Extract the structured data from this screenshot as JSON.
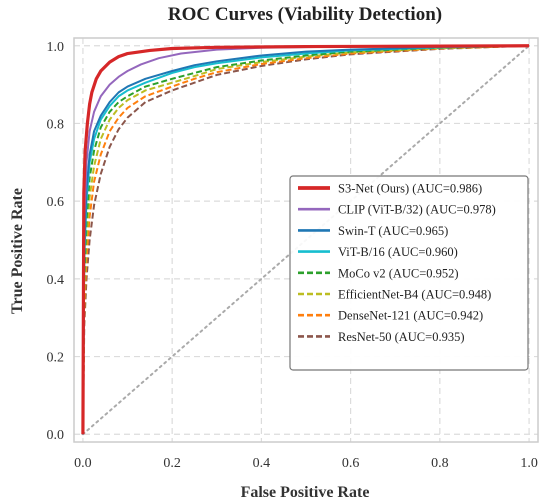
{
  "chart_data": {
    "type": "line",
    "title": "ROC Curves (Viability Detection)",
    "xlabel": "False Positive Rate",
    "ylabel": "True Positive Rate",
    "xlim": [
      -0.02,
      1.02
    ],
    "ylim": [
      -0.02,
      1.02
    ],
    "xticks": [
      "0.0",
      "0.2",
      "0.4",
      "0.6",
      "0.8",
      "1.0"
    ],
    "yticks": [
      "0.0",
      "0.2",
      "0.4",
      "0.6",
      "0.8",
      "1.0"
    ],
    "grid": true,
    "legend_position": "center-right",
    "diagonal": {
      "style": "dotted",
      "color": "#aaaaaa",
      "points": [
        [
          0,
          0
        ],
        [
          1,
          1
        ]
      ]
    },
    "series": [
      {
        "name": "S3-Net (Ours) (AUC=0.986)",
        "color": "#d62728",
        "style": "solid",
        "width": 3.2,
        "points": [
          [
            0,
            0
          ],
          [
            0.002,
            0.62
          ],
          [
            0.005,
            0.73
          ],
          [
            0.01,
            0.8
          ],
          [
            0.015,
            0.85
          ],
          [
            0.02,
            0.88
          ],
          [
            0.03,
            0.915
          ],
          [
            0.04,
            0.935
          ],
          [
            0.06,
            0.958
          ],
          [
            0.08,
            0.972
          ],
          [
            0.1,
            0.98
          ],
          [
            0.15,
            0.988
          ],
          [
            0.2,
            0.993
          ],
          [
            0.3,
            0.996
          ],
          [
            0.5,
            0.998
          ],
          [
            0.8,
            0.999
          ],
          [
            1,
            1
          ]
        ]
      },
      {
        "name": "CLIP (ViT-B/32) (AUC=0.978)",
        "color": "#9467bd",
        "style": "solid",
        "width": 2,
        "points": [
          [
            0,
            0
          ],
          [
            0.003,
            0.55
          ],
          [
            0.008,
            0.7
          ],
          [
            0.015,
            0.78
          ],
          [
            0.025,
            0.83
          ],
          [
            0.04,
            0.87
          ],
          [
            0.06,
            0.9
          ],
          [
            0.08,
            0.92
          ],
          [
            0.1,
            0.935
          ],
          [
            0.13,
            0.952
          ],
          [
            0.17,
            0.968
          ],
          [
            0.22,
            0.98
          ],
          [
            0.3,
            0.99
          ],
          [
            0.4,
            0.995
          ],
          [
            0.6,
            0.998
          ],
          [
            1,
            1
          ]
        ]
      },
      {
        "name": "Swin-T (AUC=0.965)",
        "color": "#1f77b4",
        "style": "solid",
        "width": 2,
        "points": [
          [
            0,
            0
          ],
          [
            0.003,
            0.48
          ],
          [
            0.008,
            0.63
          ],
          [
            0.015,
            0.72
          ],
          [
            0.025,
            0.78
          ],
          [
            0.04,
            0.82
          ],
          [
            0.06,
            0.855
          ],
          [
            0.08,
            0.88
          ],
          [
            0.1,
            0.895
          ],
          [
            0.14,
            0.915
          ],
          [
            0.2,
            0.935
          ],
          [
            0.25,
            0.95
          ],
          [
            0.3,
            0.96
          ],
          [
            0.4,
            0.975
          ],
          [
            0.5,
            0.985
          ],
          [
            0.6,
            0.99
          ],
          [
            0.8,
            0.997
          ],
          [
            1,
            1
          ]
        ]
      },
      {
        "name": "ViT-B/16 (AUC=0.960)",
        "color": "#17becf",
        "style": "solid",
        "width": 2,
        "points": [
          [
            0,
            0
          ],
          [
            0.003,
            0.45
          ],
          [
            0.008,
            0.6
          ],
          [
            0.015,
            0.7
          ],
          [
            0.025,
            0.76
          ],
          [
            0.04,
            0.81
          ],
          [
            0.06,
            0.845
          ],
          [
            0.08,
            0.87
          ],
          [
            0.1,
            0.885
          ],
          [
            0.14,
            0.905
          ],
          [
            0.2,
            0.93
          ],
          [
            0.25,
            0.945
          ],
          [
            0.3,
            0.955
          ],
          [
            0.4,
            0.97
          ],
          [
            0.5,
            0.98
          ],
          [
            0.6,
            0.988
          ],
          [
            0.8,
            0.996
          ],
          [
            1,
            1
          ]
        ]
      },
      {
        "name": "MoCo v2 (AUC=0.952)",
        "color": "#2ca02c",
        "style": "dashed",
        "width": 2,
        "points": [
          [
            0,
            0
          ],
          [
            0.003,
            0.4
          ],
          [
            0.008,
            0.55
          ],
          [
            0.015,
            0.66
          ],
          [
            0.025,
            0.73
          ],
          [
            0.04,
            0.79
          ],
          [
            0.06,
            0.83
          ],
          [
            0.08,
            0.855
          ],
          [
            0.1,
            0.87
          ],
          [
            0.14,
            0.895
          ],
          [
            0.2,
            0.915
          ],
          [
            0.25,
            0.93
          ],
          [
            0.3,
            0.945
          ],
          [
            0.4,
            0.962
          ],
          [
            0.5,
            0.975
          ],
          [
            0.6,
            0.985
          ],
          [
            0.8,
            0.995
          ],
          [
            1,
            1
          ]
        ]
      },
      {
        "name": "EfficientNet-B4 (AUC=0.948)",
        "color": "#bcbd22",
        "style": "dashed",
        "width": 2,
        "points": [
          [
            0,
            0
          ],
          [
            0.003,
            0.36
          ],
          [
            0.008,
            0.5
          ],
          [
            0.015,
            0.61
          ],
          [
            0.025,
            0.69
          ],
          [
            0.04,
            0.76
          ],
          [
            0.06,
            0.81
          ],
          [
            0.08,
            0.84
          ],
          [
            0.1,
            0.86
          ],
          [
            0.14,
            0.885
          ],
          [
            0.2,
            0.905
          ],
          [
            0.25,
            0.922
          ],
          [
            0.3,
            0.94
          ],
          [
            0.4,
            0.958
          ],
          [
            0.5,
            0.972
          ],
          [
            0.6,
            0.983
          ],
          [
            0.8,
            0.994
          ],
          [
            1,
            1
          ]
        ]
      },
      {
        "name": "DenseNet-121 (AUC=0.942)",
        "color": "#ff7f0e",
        "style": "dashed",
        "width": 2,
        "points": [
          [
            0,
            0
          ],
          [
            0.003,
            0.32
          ],
          [
            0.008,
            0.45
          ],
          [
            0.015,
            0.56
          ],
          [
            0.025,
            0.65
          ],
          [
            0.04,
            0.72
          ],
          [
            0.06,
            0.78
          ],
          [
            0.08,
            0.815
          ],
          [
            0.1,
            0.84
          ],
          [
            0.14,
            0.87
          ],
          [
            0.2,
            0.895
          ],
          [
            0.25,
            0.915
          ],
          [
            0.3,
            0.932
          ],
          [
            0.4,
            0.953
          ],
          [
            0.5,
            0.968
          ],
          [
            0.6,
            0.98
          ],
          [
            0.8,
            0.993
          ],
          [
            1,
            1
          ]
        ]
      },
      {
        "name": "ResNet-50 (AUC=0.935)",
        "color": "#8c564b",
        "style": "dashed",
        "width": 2,
        "points": [
          [
            0,
            0
          ],
          [
            0.003,
            0.28
          ],
          [
            0.008,
            0.4
          ],
          [
            0.015,
            0.5
          ],
          [
            0.025,
            0.59
          ],
          [
            0.04,
            0.67
          ],
          [
            0.06,
            0.74
          ],
          [
            0.08,
            0.785
          ],
          [
            0.1,
            0.815
          ],
          [
            0.14,
            0.855
          ],
          [
            0.2,
            0.885
          ],
          [
            0.25,
            0.905
          ],
          [
            0.3,
            0.925
          ],
          [
            0.4,
            0.948
          ],
          [
            0.5,
            0.965
          ],
          [
            0.6,
            0.978
          ],
          [
            0.8,
            0.992
          ],
          [
            1,
            1
          ]
        ]
      }
    ]
  }
}
